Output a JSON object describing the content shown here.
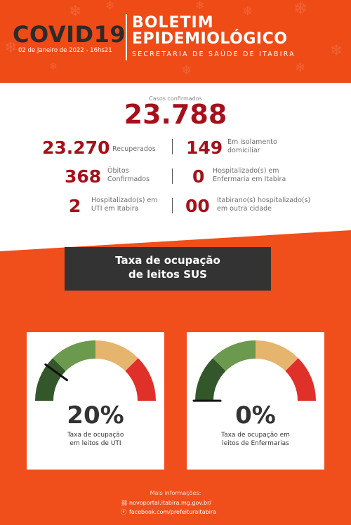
{
  "header": {
    "title": "COVID19",
    "date": "02 de Janeiro de 2022 - 16hs21",
    "bulletin_line1": "BOLETIM",
    "bulletin_line2": "EPIDEMIOLÓGICO",
    "secretaria": "SECRETARIA DE SAÚDE DE ITABIRA"
  },
  "confirmed": {
    "label": "Casos confirmados",
    "value": "23.788"
  },
  "stats": [
    {
      "value": "23.270",
      "label": "Recuperados"
    },
    {
      "value": "149",
      "label_line1": "Em isolamento",
      "label_line2": "domiciliar"
    },
    {
      "value": "368",
      "label_line1": "Óbitos",
      "label_line2": "Confirmados"
    },
    {
      "value": "0",
      "label_line1": "Hospitalizado(s) em",
      "label_line2": "Enfermaria em Itabira"
    },
    {
      "value": "2",
      "label_line1": "Hospitalizado(s) em",
      "label_line2": "UTI em Itabira"
    },
    {
      "value": "00",
      "label_line1": "Itabirano(s) hospitalizado(s)",
      "label_line2": "em outra cidade"
    }
  ],
  "sus": {
    "line1": "Taxa de ocupação",
    "line2": "de leitos SUS"
  },
  "gauges": [
    {
      "percent_text": "20%",
      "value": 0.2,
      "caption_line1": "Taxa de ocupação",
      "caption_line2": "em leitos de UTI"
    },
    {
      "percent_text": "0%",
      "value": 0.0,
      "caption_line1": "Taxa de ocupação em",
      "caption_line2": "leitos de Enfermarias"
    }
  ],
  "gauge_colors": [
    "#33572b",
    "#6b9a4e",
    "#e5b56e",
    "#e0302a"
  ],
  "footer": {
    "more_info": "Mais informações:",
    "site": "novoportal.itabira.mg.gov.br/",
    "facebook": "facebook.com/prefeituraitabira",
    "link_icon": "link-icon",
    "facebook_icon": "facebook-icon"
  }
}
